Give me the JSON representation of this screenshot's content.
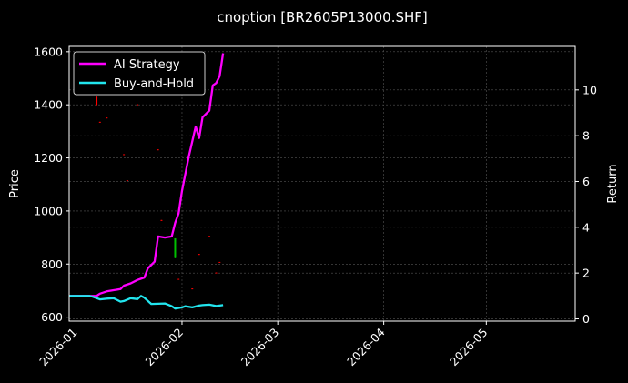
{
  "chart_data": {
    "type": "line",
    "title": "cnoption [BR2605P13000.SHF]",
    "ylabel": "Price",
    "y2label": "Return",
    "x_ticks": [
      "2026-01",
      "2026-02",
      "2026-03",
      "2026-04",
      "2026-05"
    ],
    "x_range": [
      "2025-12-30",
      "2026-05-27"
    ],
    "y_ticks": [
      600,
      800,
      1000,
      1200,
      1400,
      1600
    ],
    "ylim": [
      585,
      1620
    ],
    "y2_ticks": [
      0,
      2,
      4,
      6,
      8,
      10
    ],
    "y2lim": [
      -0.1,
      11.9
    ],
    "grid": true,
    "legend_position": "top-left",
    "legend": [
      "AI Strategy",
      "Buy-and-Hold"
    ],
    "colors": {
      "background": "#000000",
      "ai": "#ff00ff",
      "bh": "#22e5ee",
      "up": "#00c000",
      "down": "#ff0000",
      "grid": "#555555"
    },
    "candles": [
      {
        "date": "2026-01-07",
        "open": 1430,
        "close": 1400,
        "high": 1435,
        "low": 1395
      },
      {
        "date": "2026-01-08",
        "open": 1336,
        "close": 1334,
        "high": 1336,
        "low": 1333
      },
      {
        "date": "2026-01-10",
        "open": 1352,
        "close": 1350,
        "high": 1352,
        "low": 1349
      },
      {
        "date": "2026-01-15",
        "open": 1214,
        "close": 1212,
        "high": 1214,
        "low": 1211
      },
      {
        "date": "2026-01-16",
        "open": 1116,
        "close": 1114,
        "high": 1116,
        "low": 1113
      },
      {
        "date": "2026-01-19",
        "open": 1402,
        "close": 1400,
        "high": 1402,
        "low": 1399
      },
      {
        "date": "2026-01-25",
        "open": 1232,
        "close": 1230,
        "high": 1232,
        "low": 1229
      },
      {
        "date": "2026-01-26",
        "open": 966,
        "close": 964,
        "high": 966,
        "low": 963
      },
      {
        "date": "2026-01-30",
        "open": 823,
        "close": 897,
        "high": 897,
        "low": 822
      },
      {
        "date": "2026-01-31",
        "open": 744,
        "close": 742,
        "high": 744,
        "low": 741
      },
      {
        "date": "2026-02-04",
        "open": 708,
        "close": 706,
        "high": 708,
        "low": 705
      },
      {
        "date": "2026-02-06",
        "open": 838,
        "close": 836,
        "high": 838,
        "low": 835
      },
      {
        "date": "2026-02-09",
        "open": 906,
        "close": 904,
        "high": 906,
        "low": 903
      },
      {
        "date": "2026-02-11",
        "open": 768,
        "close": 766,
        "high": 768,
        "low": 765
      },
      {
        "date": "2026-02-12",
        "open": 808,
        "close": 806,
        "high": 808,
        "low": 805
      }
    ],
    "series": [
      {
        "name": "AI Strategy",
        "x": [
          "2025-12-30",
          "2026-01-07",
          "2026-01-08",
          "2026-01-10",
          "2026-01-12",
          "2026-01-14",
          "2026-01-15",
          "2026-01-17",
          "2026-01-19",
          "2026-01-20",
          "2026-01-21",
          "2026-01-22",
          "2026-01-24",
          "2026-01-25",
          "2026-01-27",
          "2026-01-29",
          "2026-01-30",
          "2026-01-31",
          "2026-02-01",
          "2026-02-03",
          "2026-02-05",
          "2026-02-06",
          "2026-02-07",
          "2026-02-09",
          "2026-02-10",
          "2026-02-11",
          "2026-02-12",
          "2026-02-13"
        ],
        "values": [
          1.0,
          1.0,
          1.1,
          1.2,
          1.25,
          1.3,
          1.45,
          1.55,
          1.7,
          1.75,
          1.8,
          2.2,
          2.5,
          3.6,
          3.55,
          3.6,
          4.2,
          4.6,
          5.6,
          7.1,
          8.4,
          7.9,
          8.8,
          9.1,
          10.2,
          10.3,
          10.6,
          11.6
        ]
      },
      {
        "name": "Buy-and-Hold",
        "x": [
          "2025-12-30",
          "2026-01-03",
          "2026-01-05",
          "2026-01-06",
          "2026-01-08",
          "2026-01-10",
          "2026-01-12",
          "2026-01-14",
          "2026-01-15",
          "2026-01-17",
          "2026-01-19",
          "2026-01-20",
          "2026-01-21",
          "2026-01-23",
          "2026-01-25",
          "2026-01-27",
          "2026-01-29",
          "2026-01-30",
          "2026-02-01",
          "2026-02-02",
          "2026-02-04",
          "2026-02-06",
          "2026-02-07",
          "2026-02-09",
          "2026-02-10",
          "2026-02-11",
          "2026-02-13"
        ],
        "values": [
          1.0,
          1.0,
          1.0,
          0.96,
          0.85,
          0.88,
          0.9,
          0.75,
          0.78,
          0.9,
          0.86,
          1.0,
          0.92,
          0.65,
          0.66,
          0.67,
          0.55,
          0.45,
          0.5,
          0.55,
          0.5,
          0.58,
          0.6,
          0.62,
          0.59,
          0.56,
          0.6
        ]
      }
    ]
  }
}
